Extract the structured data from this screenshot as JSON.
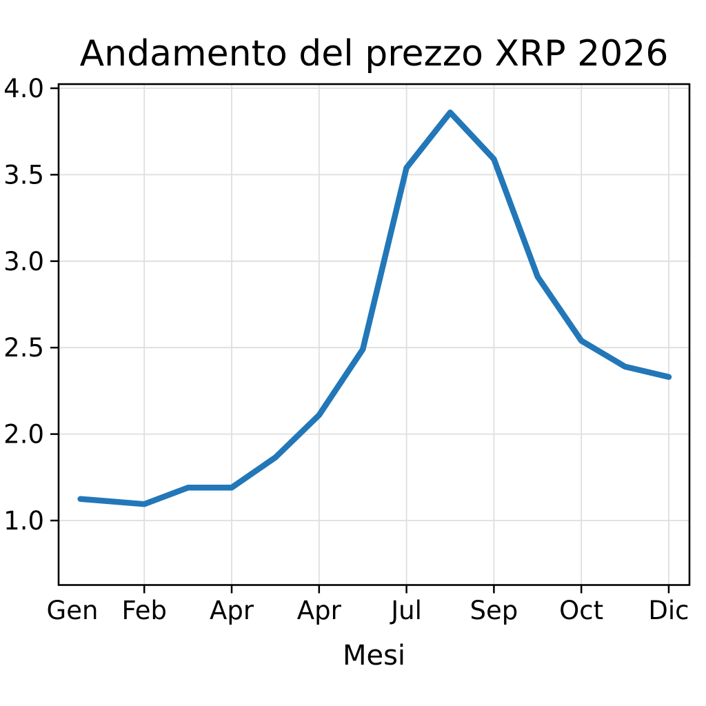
{
  "chart_data": {
    "type": "line",
    "title": "Andamento del prezzo XRP 2026",
    "xlabel": "Mesi",
    "ylabel": "",
    "x_tick_labels": [
      "Gen",
      "Feb",
      "Apr",
      "Apr",
      "Jul",
      "Sep",
      "Oct",
      "Dic"
    ],
    "x_tick_positions": [
      0,
      1,
      2,
      3,
      4,
      5,
      6,
      7
    ],
    "y_tick_labels": [
      "4.0",
      "3.5",
      "3.0",
      "2.5",
      "2.0",
      "1.0"
    ],
    "y_ticks_equally_spaced": true,
    "xlim": [
      0.02,
      7.237
    ],
    "grid": true,
    "legend": false,
    "series": [
      {
        "name": "XRP",
        "x": [
          0.27,
          1,
          1.5,
          2,
          2.5,
          3,
          3.5,
          4,
          4.5,
          5,
          5.5,
          6,
          6.5,
          7
        ],
        "y": [
          1.25,
          1.19,
          1.38,
          1.38,
          1.73,
          2.11,
          2.49,
          3.54,
          3.86,
          3.59,
          2.91,
          2.54,
          2.39,
          2.33
        ]
      }
    ]
  },
  "colors": {
    "line": "#2277b8",
    "grid": "#dedede",
    "axis": "#000000",
    "text": "#000000",
    "background": "#ffffff"
  }
}
